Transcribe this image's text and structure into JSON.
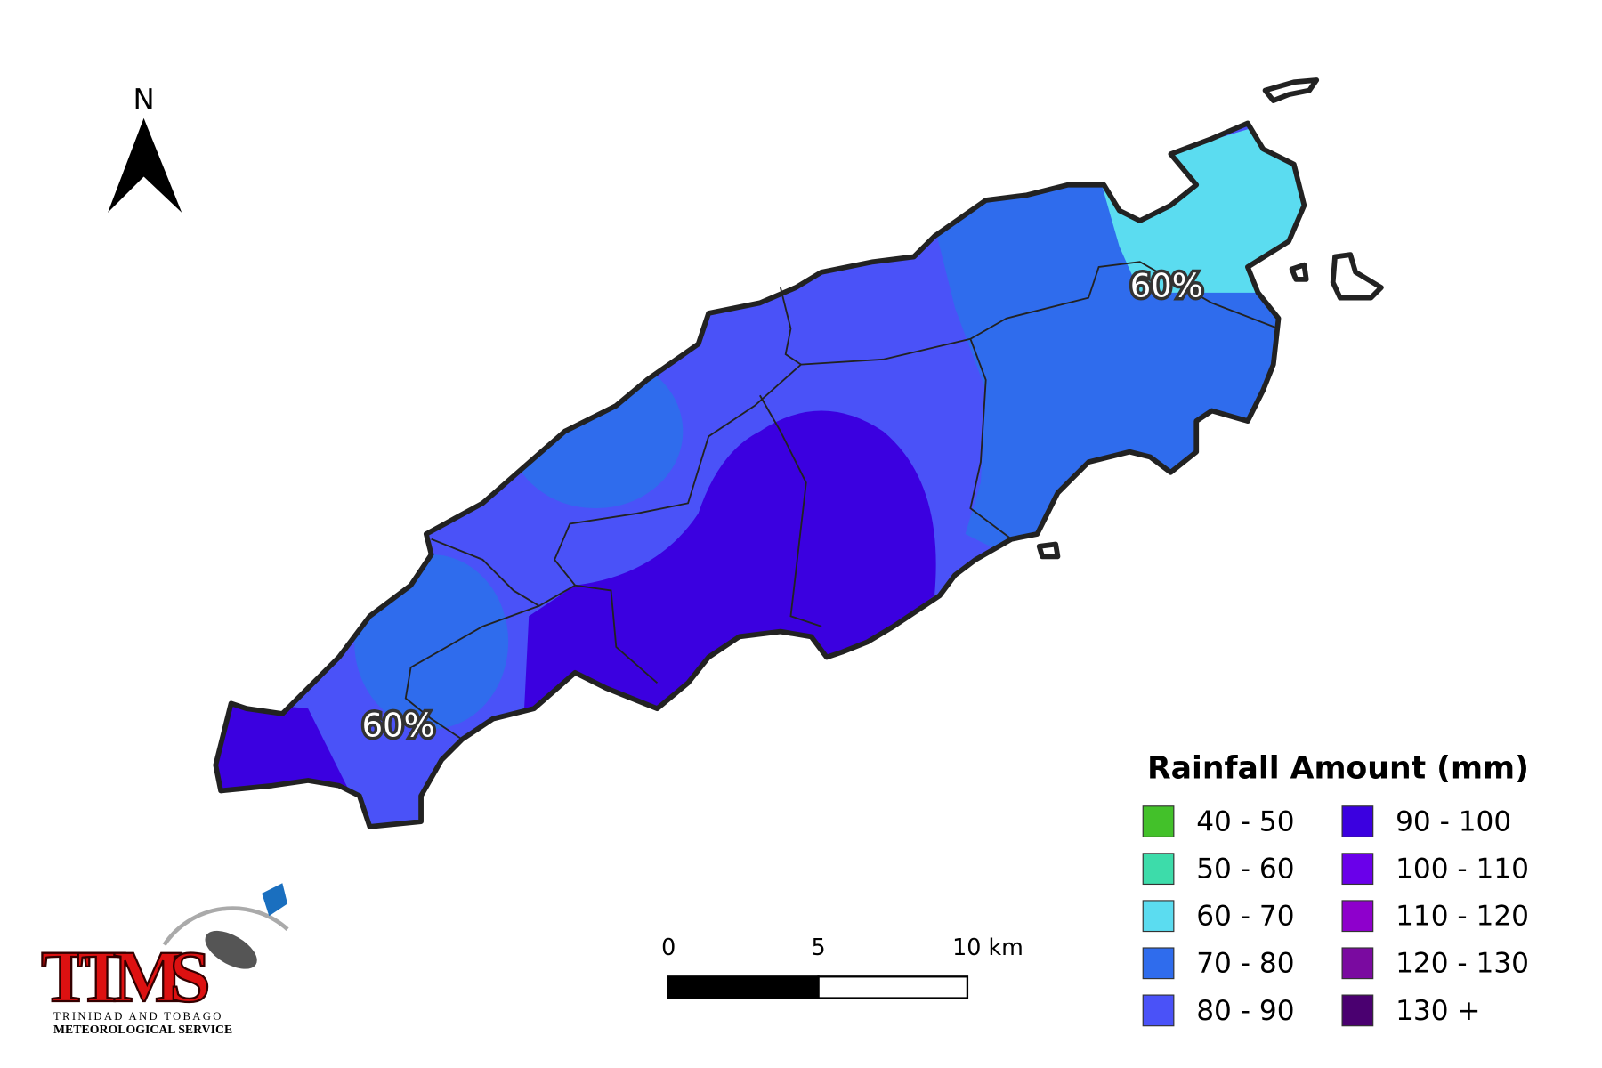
{
  "map": {
    "north_label": "N",
    "annotations": [
      "60%",
      "60%"
    ],
    "scale_bar": {
      "labels": [
        "0",
        "5",
        "10 km"
      ]
    },
    "legend": {
      "title": "Rainfall Amount (mm)",
      "items": [
        {
          "label": "40 - 50",
          "color": "#43c12a"
        },
        {
          "label": "50 - 60",
          "color": "#3ddcaa"
        },
        {
          "label": "60 - 70",
          "color": "#5bdcf0"
        },
        {
          "label": "70 - 80",
          "color": "#2f6ced"
        },
        {
          "label": "80 - 90",
          "color": "#4a52f8"
        },
        {
          "label": "90 - 100",
          "color": "#3b00e0"
        },
        {
          "label": "100 - 110",
          "color": "#6a00ea"
        },
        {
          "label": "110 - 120",
          "color": "#8e00cc"
        },
        {
          "label": "120 - 130",
          "color": "#7a0aa0"
        },
        {
          "label": "130 +",
          "color": "#4a0070"
        }
      ]
    },
    "logo": {
      "name": "TTMS",
      "line1": "TRINIDAD AND TOBAGO",
      "line2": "METEOROLOGICAL SERVICE"
    }
  }
}
